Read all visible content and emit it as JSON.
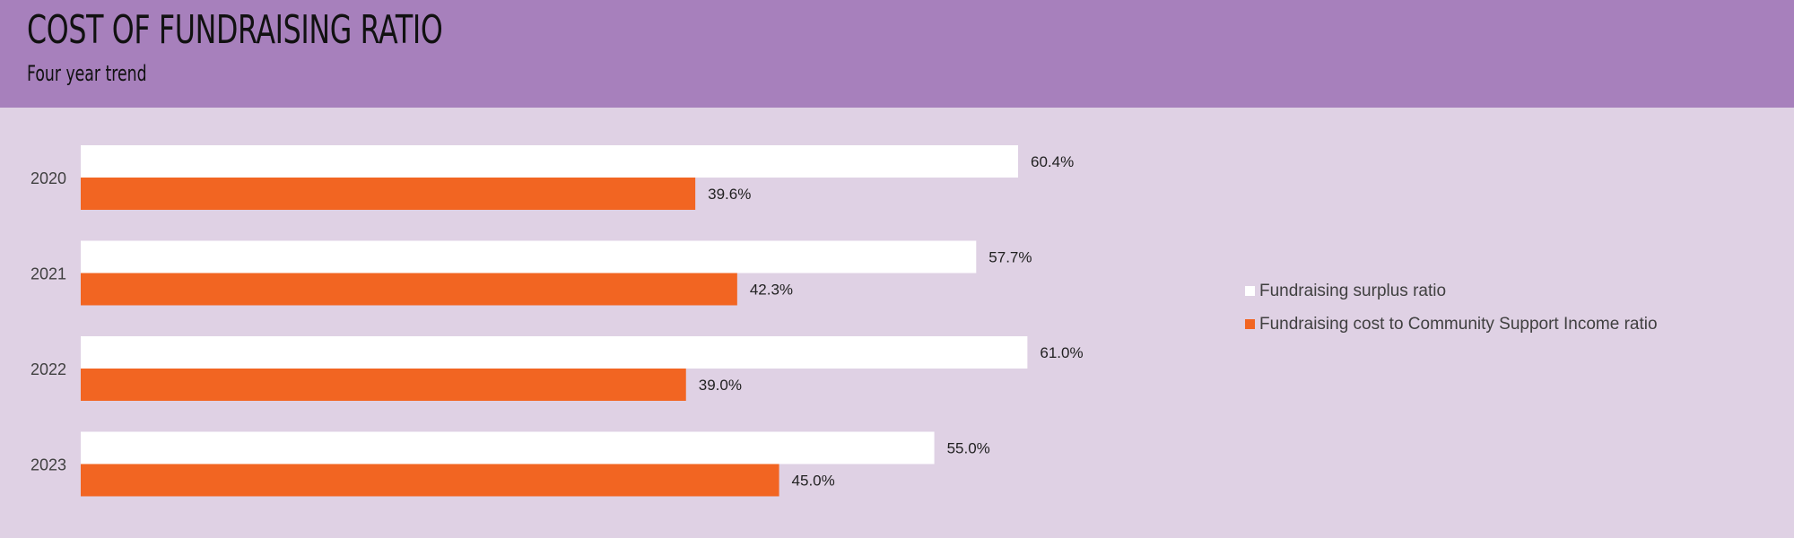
{
  "header": {
    "title": "COST OF FUNDRAISING RATIO",
    "subtitle": "Four year trend"
  },
  "colors": {
    "header_bg": "#a780bc",
    "page_bg": "#dfd1e4",
    "surplus": "#ffffff",
    "cost": "#f26522"
  },
  "legend": [
    {
      "label": "Fundraising surplus ratio",
      "color": "#ffffff"
    },
    {
      "label": "Fundraising cost to Community Support Income ratio",
      "color": "#f26522"
    }
  ],
  "chart_data": {
    "type": "bar",
    "orientation": "horizontal",
    "categories": [
      "2020",
      "2021",
      "2022",
      "2023"
    ],
    "series": [
      {
        "name": "Fundraising surplus ratio",
        "values": [
          60.4,
          57.7,
          61.0,
          55.0
        ],
        "color": "#ffffff"
      },
      {
        "name": "Fundraising cost to Community Support Income ratio",
        "values": [
          39.6,
          42.3,
          39.0,
          45.0
        ],
        "color": "#f26522"
      }
    ],
    "value_format": "percent_1dp",
    "xlim": [
      0,
      100
    ],
    "grid": false,
    "legend_position": "right"
  }
}
